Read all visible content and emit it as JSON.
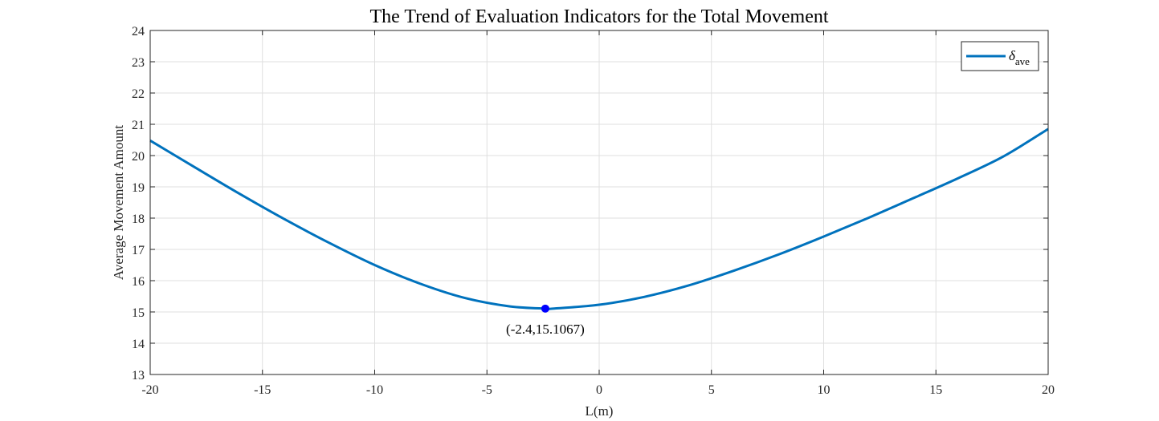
{
  "chart_data": {
    "type": "line",
    "title": "The Trend of Evaluation Indicators for the Total Movement",
    "xlabel": "L(m)",
    "ylabel": "Average Movement Amount",
    "xlim": [
      -20,
      20
    ],
    "ylim": [
      13,
      24
    ],
    "xticks": [
      -20,
      -15,
      -10,
      -5,
      0,
      5,
      10,
      15,
      20
    ],
    "yticks": [
      13,
      14,
      15,
      16,
      17,
      18,
      19,
      20,
      21,
      22,
      23,
      24
    ],
    "grid": true,
    "legend": {
      "position": "top-right",
      "entries": [
        {
          "symbol": "δ",
          "subscript": "ave"
        }
      ]
    },
    "series": [
      {
        "color": "#0072BD",
        "x": [
          -20,
          -18,
          -16,
          -14,
          -12,
          -10,
          -8,
          -6,
          -4,
          -2.4,
          -2,
          0,
          2,
          4,
          6,
          8,
          10,
          12,
          14,
          16,
          18,
          20
        ],
        "y": [
          20.48,
          19.62,
          18.77,
          17.96,
          17.2,
          16.5,
          15.91,
          15.45,
          15.18,
          15.1067,
          15.11,
          15.23,
          15.48,
          15.85,
          16.32,
          16.84,
          17.41,
          18.01,
          18.64,
          19.28,
          19.97,
          20.85
        ]
      }
    ],
    "marker": {
      "x": -2.4,
      "y": 15.1067,
      "label": "(-2.4,15.1067)",
      "color": "#0000FF"
    }
  }
}
